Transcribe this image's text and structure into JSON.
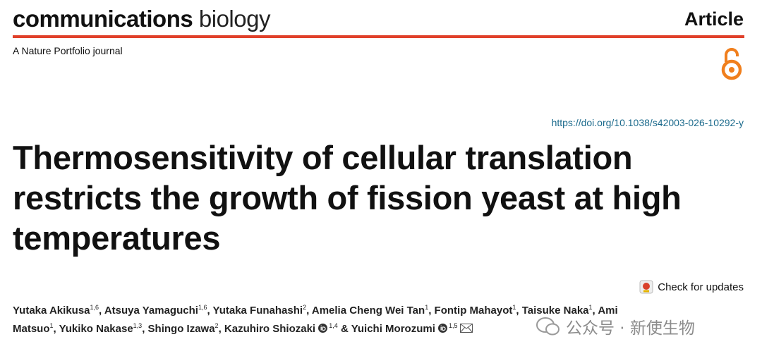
{
  "header": {
    "journal_bold": "communications",
    "journal_light": "biology",
    "article_type": "Article",
    "tagline": "A Nature Portfolio journal"
  },
  "doi": "https://doi.org/10.1038/s42003-026-10292-y",
  "title": "Thermosensitivity of cellular translation restricts the growth of fission yeast at high temperatures",
  "check_updates": "Check for updates",
  "authors": [
    {
      "name": "Yutaka Akikusa",
      "affiliations": "1,6",
      "suffix": ", "
    },
    {
      "name": "Atsuya Yamaguchi",
      "affiliations": "1,6",
      "suffix": ", "
    },
    {
      "name": "Yutaka Funahashi",
      "affiliations": "2",
      "suffix": ", "
    },
    {
      "name": "Amelia Cheng Wei Tan",
      "affiliations": "1",
      "suffix": ", "
    },
    {
      "name": "Fontip Mahayot",
      "affiliations": "1",
      "suffix": ", "
    },
    {
      "name": "Taisuke Naka",
      "affiliations": "1",
      "suffix": ", "
    },
    {
      "name": "Ami Matsuo",
      "affiliations": "1",
      "suffix": ", "
    },
    {
      "name": "Yukiko Nakase",
      "affiliations": "1,3",
      "suffix": ", "
    },
    {
      "name": "Shingo Izawa",
      "affiliations": "2",
      "suffix": ", "
    },
    {
      "name": "Kazuhiro Shiozaki",
      "affiliations": "1,4",
      "suffix": " &",
      "orcid": true
    },
    {
      "name": "Yuichi Morozumi",
      "affiliations": "1,5",
      "orcid": true,
      "corresponding": true
    }
  ],
  "watermark": "公众号 · 新使生物"
}
